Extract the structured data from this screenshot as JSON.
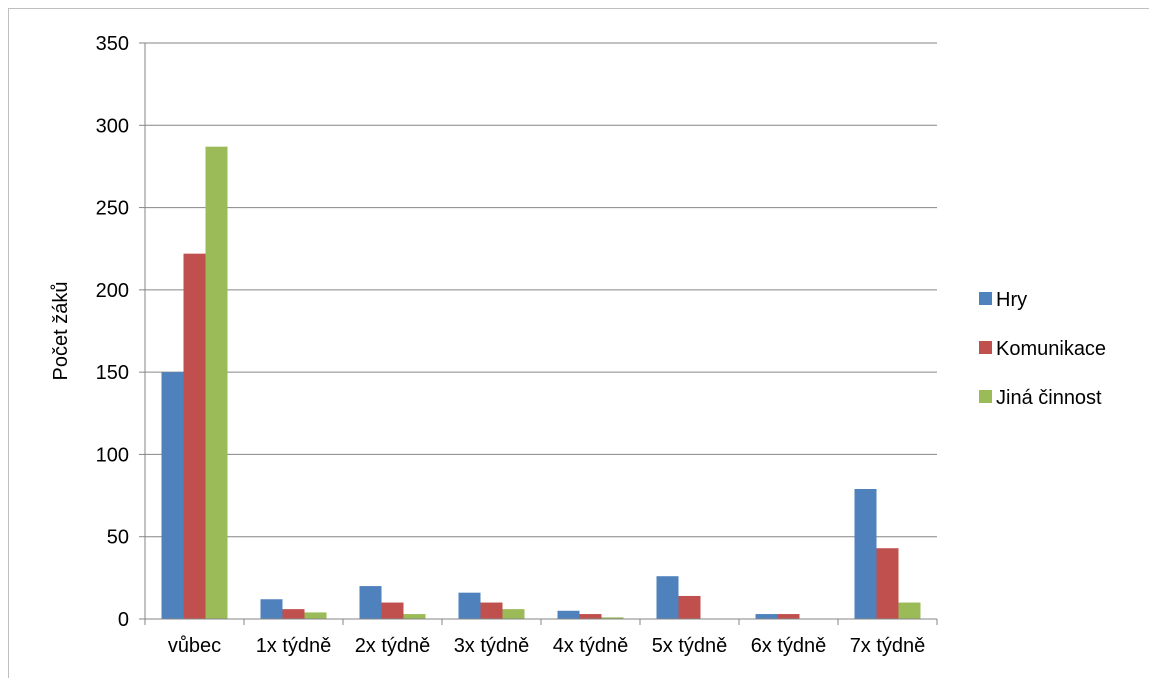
{
  "chart_data": {
    "type": "bar",
    "title": "",
    "xlabel": "",
    "ylabel": "Počet žáků",
    "ylim": [
      0,
      350
    ],
    "yticks": [
      0,
      50,
      100,
      150,
      200,
      250,
      300,
      350
    ],
    "grid": true,
    "legend_position": "right",
    "categories": [
      "vůbec",
      "1x týdně",
      "2x týdně",
      "3x týdně",
      "4x týdně",
      "5x týdně",
      "6x týdně",
      "7x týdně"
    ],
    "series": [
      {
        "name": "Hry",
        "color": "#4f81bd",
        "values": [
          150,
          12,
          20,
          16,
          5,
          26,
          3,
          79
        ]
      },
      {
        "name": "Komunikace",
        "color": "#c0504d",
        "values": [
          222,
          6,
          10,
          10,
          3,
          14,
          3,
          43
        ]
      },
      {
        "name": "Jiná činnost",
        "color": "#9bbb59",
        "values": [
          287,
          4,
          3,
          6,
          1,
          0,
          0,
          10
        ]
      }
    ]
  }
}
